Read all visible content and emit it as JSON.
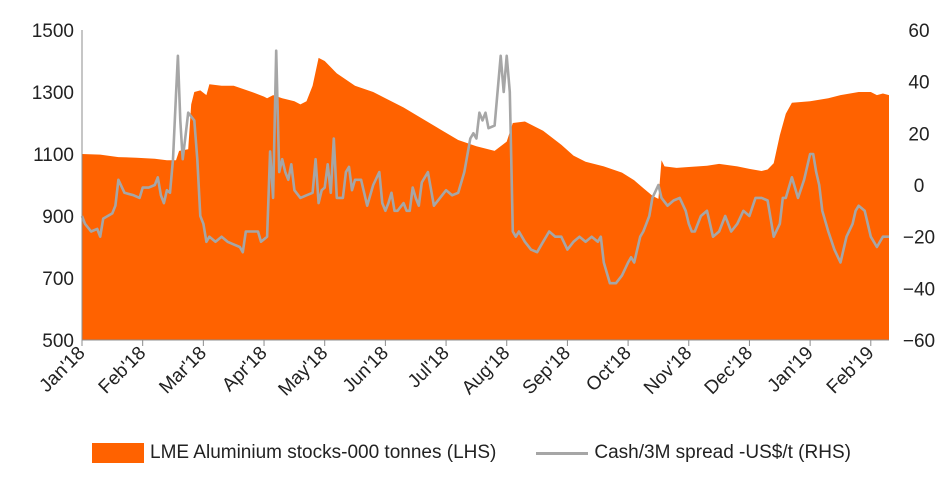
{
  "chart_data": {
    "type": "area",
    "title": "",
    "x_labels": [
      "Jan'18",
      "Feb'18",
      "Mar'18",
      "Apr'18",
      "May'18",
      "Jun'18",
      "Jul'18",
      "Aug'18",
      "Sep'18",
      "Oct'18",
      "Nov'18",
      "Dec'18",
      "Jan'19",
      "Feb'19"
    ],
    "left_axis": {
      "ticks": [
        500,
        700,
        900,
        1100,
        1300,
        1500
      ],
      "range": [
        500,
        1500
      ]
    },
    "right_axis": {
      "ticks": [
        -60,
        -40,
        -20,
        0,
        20,
        40,
        60
      ],
      "range": [
        -60,
        60
      ]
    },
    "series": [
      {
        "name": "LME Aluminium stocks-000 tonnes (LHS)",
        "type": "area",
        "axis": "left",
        "color": "#FF6200",
        "points": [
          [
            0,
            1100
          ],
          [
            0.3,
            1098
          ],
          [
            0.6,
            1090
          ],
          [
            0.9,
            1088
          ],
          [
            1.2,
            1085
          ],
          [
            1.4,
            1080
          ],
          [
            1.55,
            1080
          ],
          [
            1.6,
            1110
          ],
          [
            1.75,
            1115
          ],
          [
            1.8,
            1260
          ],
          [
            1.85,
            1300
          ],
          [
            1.95,
            1305
          ],
          [
            2.05,
            1290
          ],
          [
            2.1,
            1325
          ],
          [
            2.3,
            1320
          ],
          [
            2.5,
            1320
          ],
          [
            2.8,
            1300
          ],
          [
            3.0,
            1285
          ],
          [
            3.05,
            1280
          ],
          [
            3.15,
            1290
          ],
          [
            3.3,
            1280
          ],
          [
            3.5,
            1270
          ],
          [
            3.6,
            1260
          ],
          [
            3.7,
            1270
          ],
          [
            3.8,
            1320
          ],
          [
            3.9,
            1410
          ],
          [
            4.0,
            1400
          ],
          [
            4.2,
            1360
          ],
          [
            4.5,
            1320
          ],
          [
            4.8,
            1300
          ],
          [
            5.0,
            1280
          ],
          [
            5.3,
            1250
          ],
          [
            5.6,
            1215
          ],
          [
            5.9,
            1180
          ],
          [
            6.2,
            1145
          ],
          [
            6.5,
            1125
          ],
          [
            6.8,
            1110
          ],
          [
            7.0,
            1140
          ],
          [
            7.1,
            1200
          ],
          [
            7.3,
            1205
          ],
          [
            7.6,
            1175
          ],
          [
            7.9,
            1130
          ],
          [
            8.1,
            1095
          ],
          [
            8.3,
            1075
          ],
          [
            8.6,
            1060
          ],
          [
            8.9,
            1040
          ],
          [
            9.1,
            1015
          ],
          [
            9.25,
            990
          ],
          [
            9.4,
            965
          ],
          [
            9.5,
            955
          ],
          [
            9.55,
            1080
          ],
          [
            9.6,
            1060
          ],
          [
            9.8,
            1055
          ],
          [
            10.0,
            1058
          ],
          [
            10.3,
            1062
          ],
          [
            10.5,
            1068
          ],
          [
            10.8,
            1060
          ],
          [
            11.0,
            1052
          ],
          [
            11.2,
            1045
          ],
          [
            11.3,
            1050
          ],
          [
            11.4,
            1070
          ],
          [
            11.5,
            1160
          ],
          [
            11.6,
            1230
          ],
          [
            11.7,
            1265
          ],
          [
            12.0,
            1270
          ],
          [
            12.3,
            1280
          ],
          [
            12.5,
            1290
          ],
          [
            12.8,
            1300
          ],
          [
            13.0,
            1300
          ],
          [
            13.1,
            1290
          ],
          [
            13.2,
            1295
          ],
          [
            13.3,
            1290
          ]
        ]
      },
      {
        "name": "Cash/3M spread -US$/t (RHS)",
        "type": "line",
        "axis": "right",
        "color": "#A6A6A6",
        "points": [
          [
            0,
            -12
          ],
          [
            0.05,
            -15
          ],
          [
            0.15,
            -18
          ],
          [
            0.25,
            -17
          ],
          [
            0.3,
            -20
          ],
          [
            0.35,
            -13
          ],
          [
            0.5,
            -11
          ],
          [
            0.55,
            -8
          ],
          [
            0.6,
            2
          ],
          [
            0.7,
            -3
          ],
          [
            0.85,
            -4
          ],
          [
            0.95,
            -5
          ],
          [
            1.0,
            -1
          ],
          [
            1.05,
            -1
          ],
          [
            1.1,
            -1
          ],
          [
            1.2,
            0
          ],
          [
            1.25,
            3
          ],
          [
            1.3,
            -4
          ],
          [
            1.35,
            -7
          ],
          [
            1.4,
            -2
          ],
          [
            1.45,
            -3
          ],
          [
            1.5,
            10
          ],
          [
            1.55,
            35
          ],
          [
            1.58,
            50
          ],
          [
            1.62,
            25
          ],
          [
            1.66,
            10
          ],
          [
            1.7,
            18
          ],
          [
            1.75,
            28
          ],
          [
            1.85,
            25
          ],
          [
            1.9,
            10
          ],
          [
            1.95,
            -12
          ],
          [
            2.0,
            -15
          ],
          [
            2.05,
            -22
          ],
          [
            2.1,
            -20
          ],
          [
            2.2,
            -22
          ],
          [
            2.3,
            -20
          ],
          [
            2.4,
            -22
          ],
          [
            2.5,
            -23
          ],
          [
            2.6,
            -24
          ],
          [
            2.65,
            -26
          ],
          [
            2.7,
            -18
          ],
          [
            2.8,
            -18
          ],
          [
            2.9,
            -18
          ],
          [
            2.95,
            -22
          ],
          [
            3.05,
            -20
          ],
          [
            3.1,
            13
          ],
          [
            3.15,
            -5
          ],
          [
            3.2,
            52
          ],
          [
            3.25,
            5
          ],
          [
            3.3,
            10
          ],
          [
            3.35,
            5
          ],
          [
            3.4,
            2
          ],
          [
            3.45,
            8
          ],
          [
            3.5,
            -2
          ],
          [
            3.6,
            -5
          ],
          [
            3.7,
            -4
          ],
          [
            3.8,
            -3
          ],
          [
            3.85,
            10
          ],
          [
            3.9,
            -7
          ],
          [
            3.95,
            -2
          ],
          [
            4.0,
            -1
          ],
          [
            4.05,
            8
          ],
          [
            4.1,
            -3
          ],
          [
            4.15,
            18
          ],
          [
            4.2,
            -5
          ],
          [
            4.3,
            -5
          ],
          [
            4.35,
            5
          ],
          [
            4.4,
            7
          ],
          [
            4.45,
            -2
          ],
          [
            4.5,
            2
          ],
          [
            4.6,
            2
          ],
          [
            4.7,
            -8
          ],
          [
            4.8,
            0
          ],
          [
            4.9,
            5
          ],
          [
            4.95,
            -7
          ],
          [
            5.0,
            -10
          ],
          [
            5.05,
            -7
          ],
          [
            5.1,
            -3
          ],
          [
            5.15,
            -10
          ],
          [
            5.2,
            -10
          ],
          [
            5.3,
            -7
          ],
          [
            5.35,
            -10
          ],
          [
            5.4,
            -10
          ],
          [
            5.45,
            -1
          ],
          [
            5.5,
            -5
          ],
          [
            5.55,
            -8
          ],
          [
            5.6,
            1
          ],
          [
            5.7,
            5
          ],
          [
            5.8,
            -8
          ],
          [
            5.9,
            -5
          ],
          [
            6.0,
            -2
          ],
          [
            6.1,
            -4
          ],
          [
            6.2,
            -3
          ],
          [
            6.3,
            5
          ],
          [
            6.4,
            18
          ],
          [
            6.45,
            20
          ],
          [
            6.5,
            18
          ],
          [
            6.55,
            28
          ],
          [
            6.6,
            25
          ],
          [
            6.65,
            28
          ],
          [
            6.7,
            22
          ],
          [
            6.8,
            23
          ],
          [
            6.9,
            50
          ],
          [
            6.95,
            36
          ],
          [
            7.0,
            50
          ],
          [
            7.05,
            36
          ],
          [
            7.1,
            -18
          ],
          [
            7.15,
            -20
          ],
          [
            7.2,
            -18
          ],
          [
            7.3,
            -22
          ],
          [
            7.4,
            -25
          ],
          [
            7.5,
            -26
          ],
          [
            7.6,
            -22
          ],
          [
            7.7,
            -18
          ],
          [
            7.8,
            -20
          ],
          [
            7.9,
            -20
          ],
          [
            8.0,
            -25
          ],
          [
            8.1,
            -22
          ],
          [
            8.2,
            -20
          ],
          [
            8.3,
            -22
          ],
          [
            8.4,
            -20
          ],
          [
            8.5,
            -22
          ],
          [
            8.55,
            -20
          ],
          [
            8.6,
            -30
          ],
          [
            8.7,
            -38
          ],
          [
            8.8,
            -38
          ],
          [
            8.9,
            -35
          ],
          [
            9.0,
            -30
          ],
          [
            9.05,
            -28
          ],
          [
            9.1,
            -30
          ],
          [
            9.15,
            -25
          ],
          [
            9.2,
            -20
          ],
          [
            9.25,
            -18
          ],
          [
            9.3,
            -15
          ],
          [
            9.35,
            -12
          ],
          [
            9.4,
            -5
          ],
          [
            9.5,
            0
          ],
          [
            9.55,
            -5
          ],
          [
            9.65,
            -8
          ],
          [
            9.75,
            -6
          ],
          [
            9.85,
            -5
          ],
          [
            9.95,
            -10
          ],
          [
            10.0,
            -15
          ],
          [
            10.05,
            -18
          ],
          [
            10.1,
            -18
          ],
          [
            10.2,
            -12
          ],
          [
            10.3,
            -10
          ],
          [
            10.4,
            -20
          ],
          [
            10.5,
            -18
          ],
          [
            10.6,
            -12
          ],
          [
            10.7,
            -18
          ],
          [
            10.8,
            -15
          ],
          [
            10.9,
            -10
          ],
          [
            11.0,
            -12
          ],
          [
            11.1,
            -5
          ],
          [
            11.2,
            -5
          ],
          [
            11.3,
            -6
          ],
          [
            11.4,
            -20
          ],
          [
            11.5,
            -15
          ],
          [
            11.55,
            -5
          ],
          [
            11.6,
            -5
          ],
          [
            11.7,
            3
          ],
          [
            11.8,
            -5
          ],
          [
            11.9,
            2
          ],
          [
            12.0,
            12
          ],
          [
            12.05,
            12
          ],
          [
            12.1,
            5
          ],
          [
            12.15,
            0
          ],
          [
            12.2,
            -10
          ],
          [
            12.3,
            -18
          ],
          [
            12.4,
            -25
          ],
          [
            12.5,
            -30
          ],
          [
            12.6,
            -20
          ],
          [
            12.7,
            -15
          ],
          [
            12.75,
            -10
          ],
          [
            12.8,
            -8
          ],
          [
            12.9,
            -10
          ],
          [
            13.0,
            -20
          ],
          [
            13.1,
            -24
          ],
          [
            13.2,
            -20
          ],
          [
            13.3,
            -20
          ]
        ]
      }
    ],
    "grid": false,
    "legend_position": "bottom"
  },
  "legend": {
    "items": [
      {
        "label": "LME Aluminium stocks-000 tonnes (LHS)",
        "kind": "area",
        "color": "#FF6200"
      },
      {
        "label": "Cash/3M spread -US$/t (RHS)",
        "kind": "line",
        "color": "#A6A6A6"
      }
    ]
  }
}
